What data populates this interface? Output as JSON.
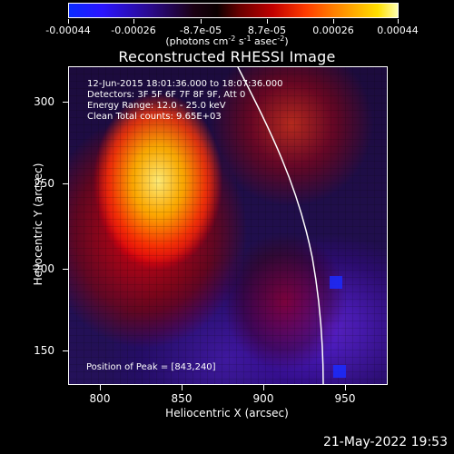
{
  "colorbar": {
    "tick_labels": [
      "-0.00044",
      "-0.00026",
      "-8.7e-05",
      "8.7e-05",
      "0.00026",
      "0.00044"
    ],
    "units_main": "(photons cm",
    "units_sup1": "-2",
    "units_mid": " s",
    "units_sup2": "-1",
    "units_mid2": " asec",
    "units_sup3": "-2",
    "units_end": ")"
  },
  "title": "Reconstructed RHESSI Image",
  "info": {
    "line1": "12-Jun-2015 18:01:36.000 to 18:07:36.000",
    "line2": "Detectors: 3F 5F 6F 7F 8F 9F, Att 0",
    "line3": "Energy Range: 12.0 - 25.0 keV",
    "line4": "Clean    Total counts: 9.65E+03"
  },
  "peak_text": "Position of Peak = [843,240]",
  "axes": {
    "x_ticks": [
      "800",
      "850",
      "900",
      "950"
    ],
    "y_ticks": [
      "300",
      "250",
      "200",
      "150"
    ],
    "x_title": "Heliocentric X (arcsec)",
    "y_title": "Heliocentric Y (arcsec)"
  },
  "footer": "21-May-2022 19:53"
}
